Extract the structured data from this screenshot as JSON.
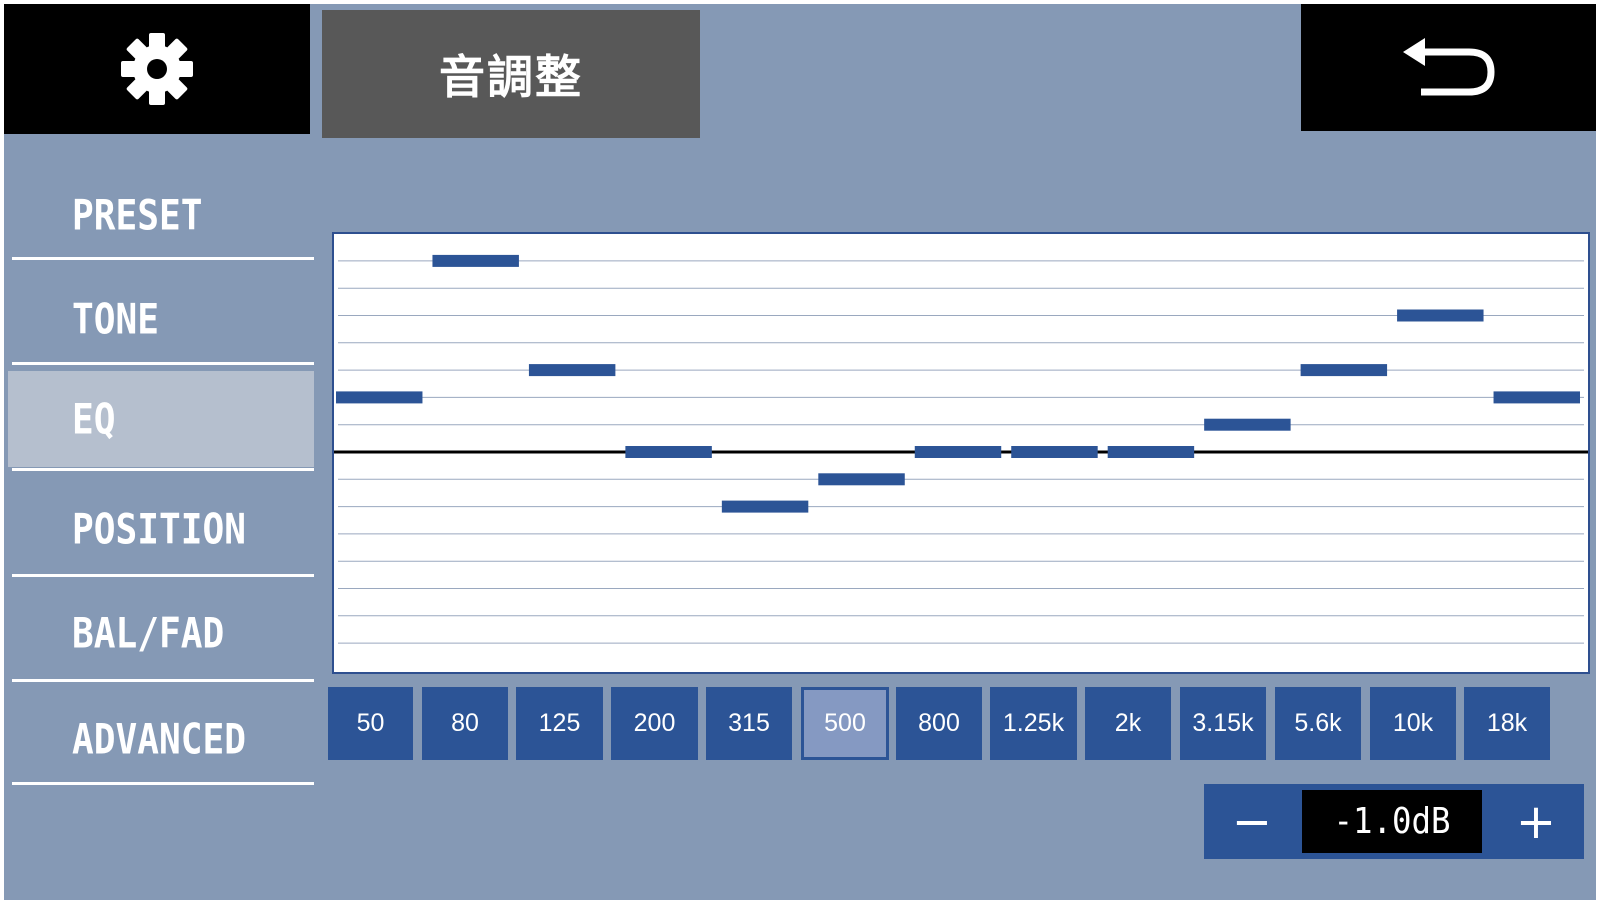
{
  "header": {
    "title": "音調整",
    "settings_icon": "gear-icon",
    "back_icon": "return-arrow-icon"
  },
  "sidebar": {
    "items": [
      {
        "label": "PRESET",
        "active": false
      },
      {
        "label": "TONE",
        "active": false
      },
      {
        "label": "EQ",
        "active": true
      },
      {
        "label": "POSITION",
        "active": false
      },
      {
        "label": "BAL/FAD",
        "active": false
      },
      {
        "label": "ADVANCED",
        "active": false
      }
    ]
  },
  "eq": {
    "bands": [
      "50",
      "80",
      "125",
      "200",
      "315",
      "500",
      "800",
      "1.25k",
      "2k",
      "3.15k",
      "5.6k",
      "10k",
      "18k"
    ],
    "selected_band": "500",
    "level_steps": [
      2,
      7,
      3,
      0,
      -2,
      -1,
      0,
      0,
      0,
      1,
      3,
      5,
      2
    ]
  },
  "value_control": {
    "minus_label": "−",
    "plus_label": "+",
    "value": "-1.0dB"
  },
  "colors": {
    "background": "#8599b5",
    "accent": "#2c5496",
    "selected": "#8599c2",
    "header": "#000000",
    "title_box": "#585858"
  }
}
